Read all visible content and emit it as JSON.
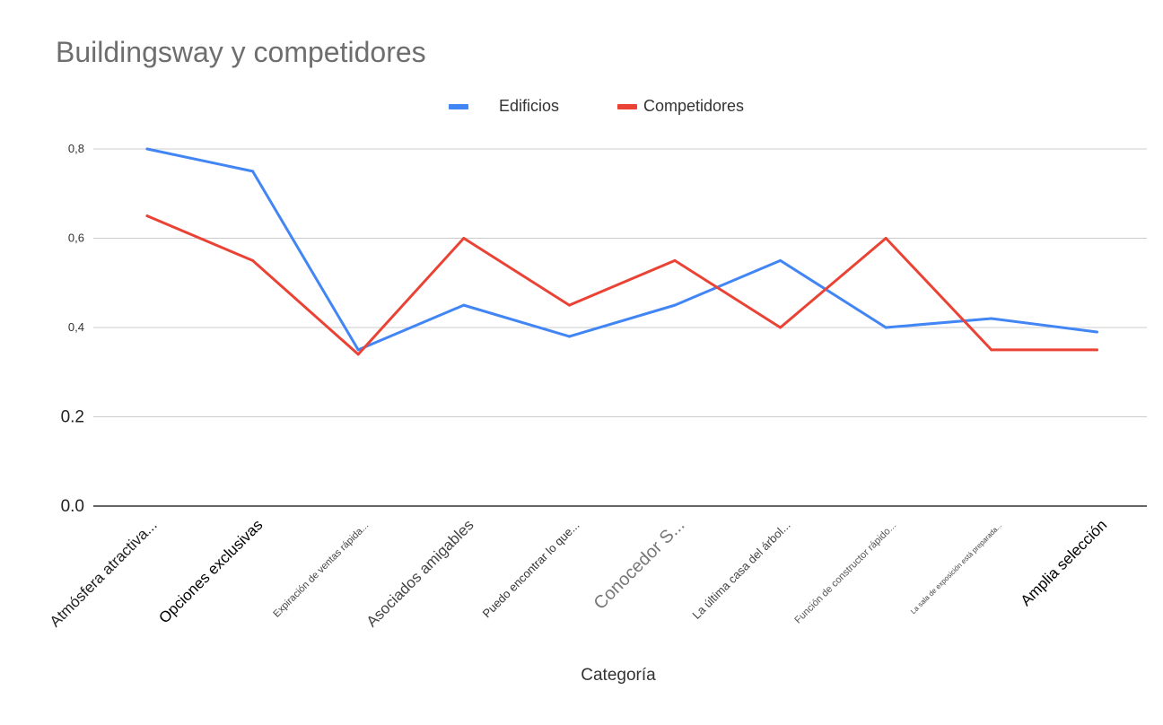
{
  "chart_data": {
    "type": "line",
    "title": "Buildingsway y competidores",
    "xlabel": "Categoría",
    "ylabel": "",
    "categories": [
      "Atmósfera atractiva...",
      "Opciones exclusivas",
      "Expiración de ventas rápida...",
      "Asociados amigables",
      "Puedo encontrar lo que...",
      "Conocedor S...",
      "La última casa del árbol...",
      "Función de constructor rápido...",
      "La sala de exposición está preparada...",
      "Amplia selección"
    ],
    "series": [
      {
        "name": "Edificios",
        "color": "#4285f4",
        "values": [
          0.8,
          0.75,
          0.35,
          0.45,
          0.38,
          0.45,
          0.55,
          0.4,
          0.42,
          0.39
        ]
      },
      {
        "name": "Competidores",
        "color": "#ea4335",
        "values": [
          0.65,
          0.55,
          0.34,
          0.6,
          0.45,
          0.55,
          0.4,
          0.6,
          0.35,
          0.35
        ]
      }
    ],
    "yticks": [
      "0.0",
      "0.2",
      "0,4",
      "0,6",
      "0,8"
    ],
    "ylim": [
      0,
      0.8
    ],
    "grid": true,
    "legend_position": "top-center"
  }
}
